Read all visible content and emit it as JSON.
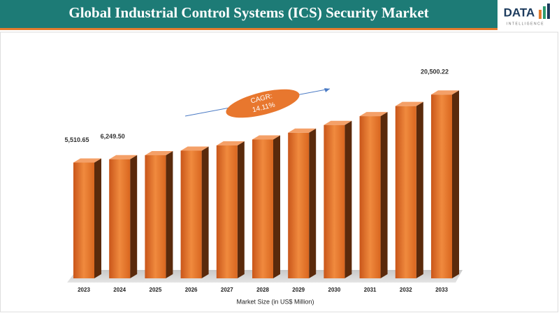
{
  "chart_data": {
    "type": "bar3d",
    "title": "Global Industrial Control Systems (ICS) Security Market",
    "logo": {
      "main": "DATA",
      "sub": "INTELLIGENCE"
    },
    "annotation": {
      "lines": [
        "CAGR:",
        "14.11%"
      ]
    },
    "x_label": "Market Size (in US$ Million)",
    "categories": [
      "2023",
      "2024",
      "2025",
      "2026",
      "2027",
      "2028",
      "2029",
      "2030",
      "2031",
      "2032",
      "2033"
    ],
    "values": [
      5510.65,
      6249.5,
      7131.3,
      8137.6,
      9285.9,
      10596.2,
      12091.3,
      13797.3,
      15744.0,
      17965.5,
      20500.22
    ],
    "value_labels": [
      "5,510.65",
      "6,249.50",
      null,
      null,
      null,
      null,
      null,
      null,
      null,
      null,
      "20,500.22"
    ],
    "color": "#e06a1e",
    "ylim": [
      -20000,
      21000
    ]
  }
}
